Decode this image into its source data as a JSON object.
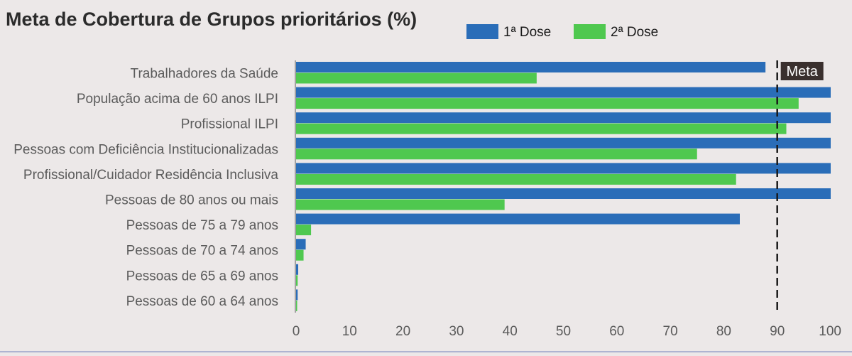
{
  "chart_data": {
    "type": "bar",
    "orientation": "horizontal",
    "title": "Meta de Cobertura de Grupos prioritários (%)",
    "categories": [
      "Trabalhadores da Saúde",
      "População acima de 60 anos ILPI",
      "Profissional ILPI",
      "Pessoas com Deficiência Institucionalizadas",
      "Profissional/Cuidador Residência Inclusiva",
      "Pessoas de 80 anos ou mais",
      "Pessoas de 75 a 79 anos",
      "Pessoas de 70 a 74 anos",
      "Pessoas de 65 a 69 anos",
      "Pessoas de 60 a 64 anos"
    ],
    "series": [
      {
        "name": "1ª Dose",
        "color": "#2a6db8",
        "values": [
          87.8,
          100,
          100,
          100,
          100,
          100,
          83,
          1.8,
          0.4,
          0.3
        ]
      },
      {
        "name": "2ª Dose",
        "color": "#4fc84f",
        "values": [
          45,
          94,
          91.7,
          75,
          82.3,
          39,
          2.8,
          1.4,
          0.3,
          0.2
        ]
      }
    ],
    "xlim": [
      0,
      100
    ],
    "xticks": [
      "0",
      "10",
      "20",
      "30",
      "40",
      "50",
      "60",
      "70",
      "80",
      "90",
      "100"
    ],
    "reference_line": {
      "label": "Meta",
      "value": 90
    },
    "legend_position": "top-right",
    "grid": false
  }
}
